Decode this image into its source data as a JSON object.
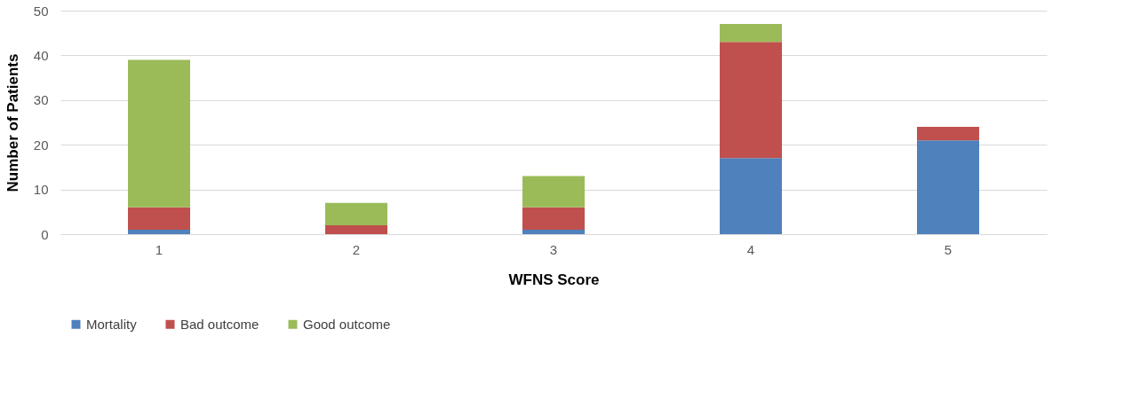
{
  "chart_data": {
    "type": "bar",
    "stacked": true,
    "xlabel": "WFNS Score",
    "ylabel": "Number of Patients",
    "categories": [
      "1",
      "2",
      "3",
      "4",
      "5"
    ],
    "series": [
      {
        "name": "Mortality",
        "color": "#4f81bd",
        "values": [
          1,
          0,
          1,
          17,
          21
        ]
      },
      {
        "name": "Bad outcome",
        "color": "#c0504d",
        "values": [
          5,
          2,
          5,
          26,
          3
        ]
      },
      {
        "name": "Good outcome",
        "color": "#9bbb59",
        "values": [
          33,
          5,
          7,
          4,
          0
        ]
      }
    ],
    "ylim": [
      0,
      50
    ],
    "yticks": [
      0,
      10,
      20,
      30,
      40,
      50
    ],
    "grid": "y",
    "legend": "bottom"
  }
}
